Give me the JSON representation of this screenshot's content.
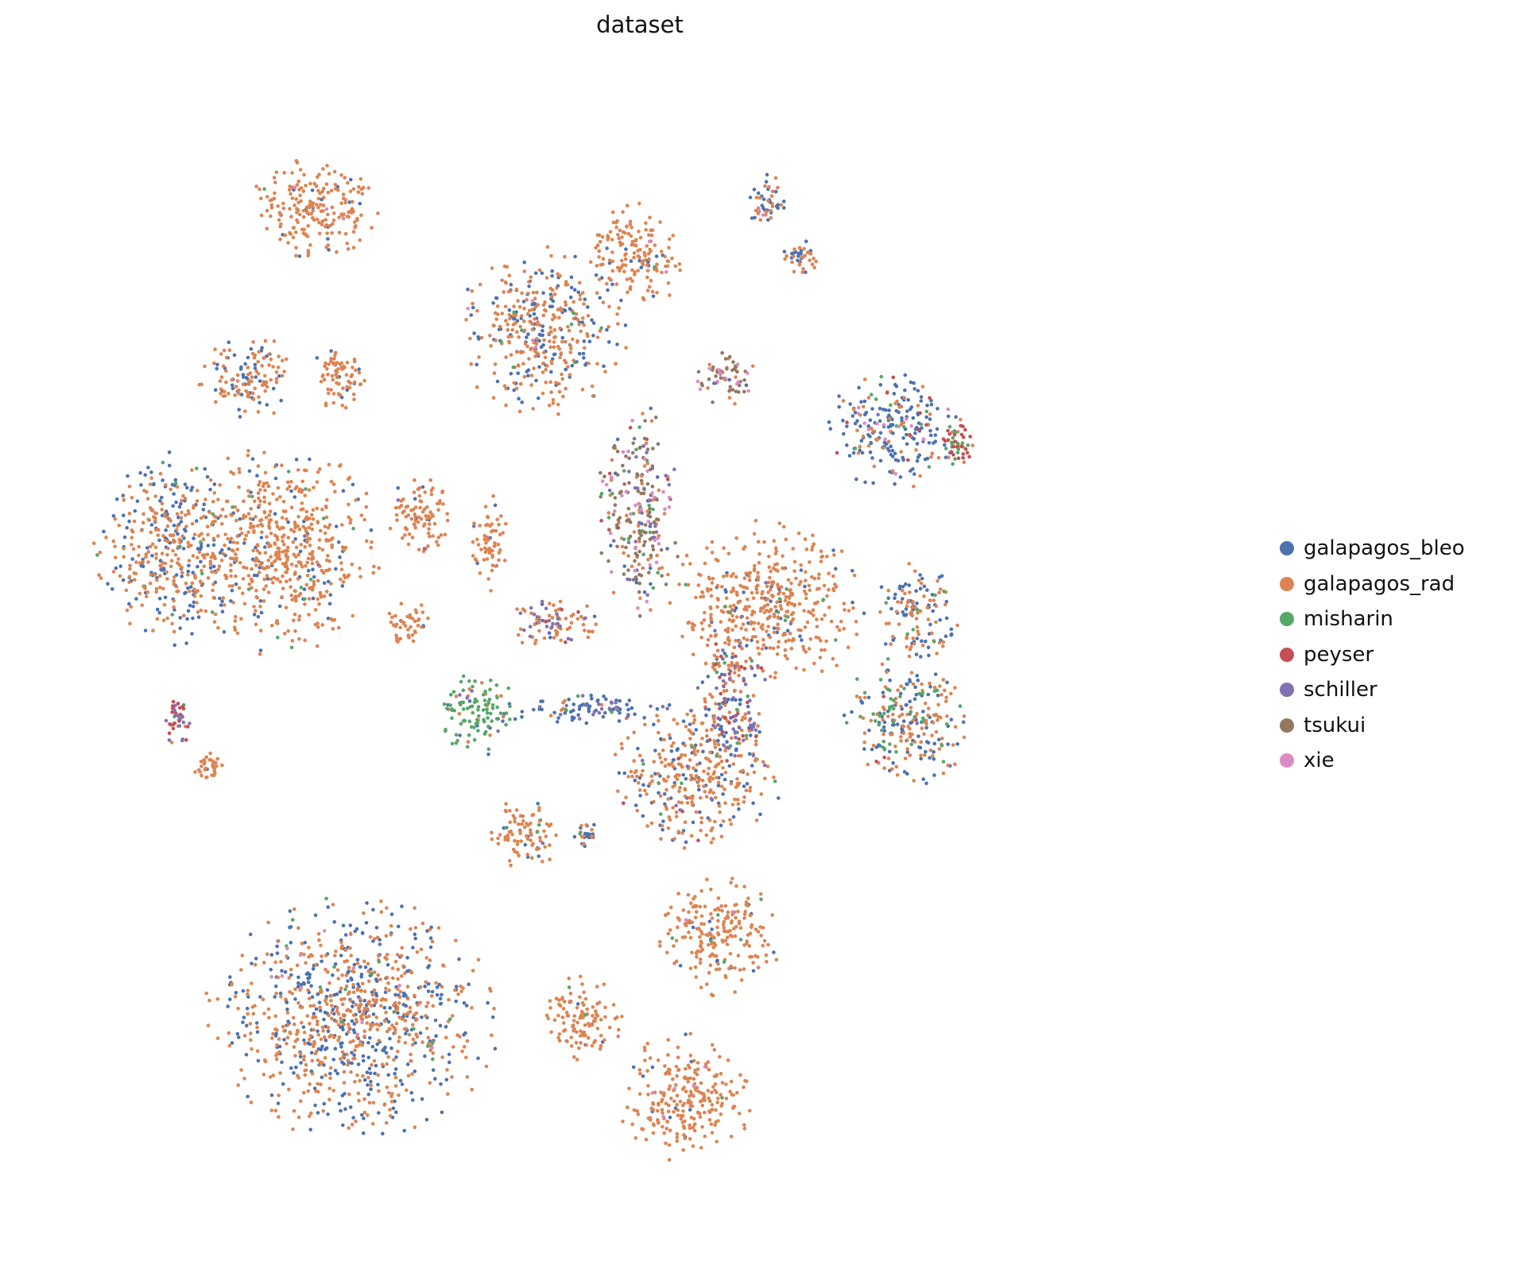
{
  "chart_data": {
    "type": "scatter",
    "title": "dataset",
    "xlabel": "",
    "ylabel": "",
    "axes_visible": false,
    "grid": false,
    "legend_placement": "right",
    "point_marker": "small-dot",
    "xlim": [
      0,
      100
    ],
    "ylim": [
      0,
      100
    ],
    "series": [
      {
        "name": "galapagos_bleo",
        "color": "#4c72b0"
      },
      {
        "name": "galapagos_rad",
        "color": "#dd8452"
      },
      {
        "name": "misharin",
        "color": "#55a868"
      },
      {
        "name": "peyser",
        "color": "#c44e52"
      },
      {
        "name": "schiller",
        "color": "#8172b3"
      },
      {
        "name": "tsukui",
        "color": "#937860"
      },
      {
        "name": "xie",
        "color": "#da8bc3"
      }
    ],
    "clusters": [
      {
        "cx": 22,
        "cy": 89,
        "rx": 5.5,
        "ry": 4.5,
        "mix": [
          0.08,
          0.9,
          0.01,
          0,
          0,
          0,
          0.01
        ]
      },
      {
        "cx": 16,
        "cy": 74,
        "rx": 4,
        "ry": 3.5,
        "mix": [
          0.3,
          0.7,
          0,
          0,
          0,
          0,
          0
        ]
      },
      {
        "cx": 24,
        "cy": 74,
        "rx": 2.5,
        "ry": 3,
        "mix": [
          0.1,
          0.9,
          0,
          0,
          0,
          0,
          0
        ]
      },
      {
        "cx": 9,
        "cy": 59,
        "rx": 6,
        "ry": 8,
        "mix": [
          0.45,
          0.53,
          0.02,
          0,
          0,
          0,
          0
        ]
      },
      {
        "cx": 19,
        "cy": 59,
        "rx": 8,
        "ry": 9,
        "mix": [
          0.15,
          0.83,
          0.02,
          0,
          0,
          0,
          0
        ]
      },
      {
        "cx": 10,
        "cy": 44,
        "rx": 1.5,
        "ry": 2,
        "mix": [
          0.05,
          0.15,
          0.05,
          0.4,
          0.35,
          0,
          0
        ]
      },
      {
        "cx": 12.5,
        "cy": 40,
        "rx": 1.3,
        "ry": 1.3,
        "mix": [
          0.05,
          0.95,
          0,
          0,
          0,
          0,
          0
        ]
      },
      {
        "cx": 25,
        "cy": 18,
        "rx": 12,
        "ry": 10,
        "mix": [
          0.42,
          0.56,
          0.01,
          0,
          0,
          0,
          0.01
        ]
      },
      {
        "cx": 41.5,
        "cy": 78,
        "rx": 7,
        "ry": 7,
        "mix": [
          0.4,
          0.58,
          0.01,
          0,
          0,
          0,
          0.01
        ]
      },
      {
        "cx": 49.5,
        "cy": 84.5,
        "rx": 4,
        "ry": 4.5,
        "mix": [
          0.08,
          0.9,
          0.01,
          0,
          0,
          0,
          0.01
        ]
      },
      {
        "cx": 50,
        "cy": 62,
        "rx": 3.5,
        "ry": 9,
        "mix": [
          0.1,
          0.2,
          0.05,
          0.03,
          0.1,
          0.4,
          0.12
        ]
      },
      {
        "cx": 57.5,
        "cy": 74,
        "rx": 2.5,
        "ry": 2.3,
        "mix": [
          0.05,
          0.2,
          0,
          0,
          0,
          0.55,
          0.2
        ]
      },
      {
        "cx": 72,
        "cy": 69.5,
        "rx": 5.5,
        "ry": 5,
        "mix": [
          0.62,
          0.2,
          0.1,
          0.03,
          0.02,
          0,
          0.03
        ]
      },
      {
        "cx": 77.5,
        "cy": 68.5,
        "rx": 1.8,
        "ry": 2,
        "mix": [
          0.1,
          0.1,
          0.2,
          0.55,
          0,
          0,
          0.05
        ]
      },
      {
        "cx": 61,
        "cy": 89.5,
        "rx": 1.5,
        "ry": 2.5,
        "mix": [
          0.5,
          0.45,
          0,
          0,
          0,
          0,
          0.05
        ]
      },
      {
        "cx": 64,
        "cy": 84.5,
        "rx": 1.7,
        "ry": 1.5,
        "mix": [
          0.6,
          0.4,
          0,
          0,
          0,
          0,
          0
        ]
      },
      {
        "cx": 61,
        "cy": 54,
        "rx": 8,
        "ry": 7,
        "mix": [
          0.08,
          0.88,
          0.03,
          0,
          0.01,
          0,
          0
        ]
      },
      {
        "cx": 55,
        "cy": 39,
        "rx": 7,
        "ry": 6,
        "mix": [
          0.25,
          0.7,
          0.02,
          0.01,
          0.02,
          0,
          0
        ]
      },
      {
        "cx": 58,
        "cy": 46,
        "rx": 3,
        "ry": 7,
        "mix": [
          0.22,
          0.3,
          0.05,
          0.1,
          0.33,
          0,
          0
        ]
      },
      {
        "cx": 73.5,
        "cy": 44,
        "rx": 5.5,
        "ry": 5.5,
        "mix": [
          0.38,
          0.45,
          0.15,
          0.01,
          0.01,
          0,
          0
        ]
      },
      {
        "cx": 74,
        "cy": 53.5,
        "rx": 3.5,
        "ry": 4,
        "mix": [
          0.5,
          0.45,
          0.05,
          0,
          0,
          0,
          0
        ]
      },
      {
        "cx": 57,
        "cy": 25,
        "rx": 5,
        "ry": 5,
        "mix": [
          0.06,
          0.9,
          0.02,
          0,
          0,
          0,
          0.02
        ]
      },
      {
        "cx": 54,
        "cy": 11,
        "rx": 5.5,
        "ry": 5.5,
        "mix": [
          0.03,
          0.95,
          0.01,
          0,
          0,
          0,
          0.01
        ]
      },
      {
        "cx": 45,
        "cy": 18,
        "rx": 3.5,
        "ry": 3.5,
        "mix": [
          0.05,
          0.93,
          0.01,
          0,
          0,
          0,
          0.01
        ]
      },
      {
        "cx": 36,
        "cy": 44.5,
        "rx": 3.5,
        "ry": 3.5,
        "mix": [
          0.1,
          0.15,
          0.72,
          0,
          0.03,
          0,
          0
        ]
      },
      {
        "cx": 40,
        "cy": 34,
        "rx": 3,
        "ry": 3,
        "mix": [
          0.1,
          0.85,
          0.03,
          0,
          0.02,
          0,
          0
        ]
      },
      {
        "cx": 31,
        "cy": 62,
        "rx": 2.8,
        "ry": 3.5,
        "mix": [
          0.05,
          0.93,
          0,
          0,
          0.02,
          0,
          0
        ]
      },
      {
        "cx": 37,
        "cy": 59.5,
        "rx": 1.5,
        "ry": 4,
        "mix": [
          0.05,
          0.93,
          0,
          0,
          0.02,
          0,
          0
        ]
      },
      {
        "cx": 42.5,
        "cy": 52.5,
        "rx": 4,
        "ry": 2.2,
        "mix": [
          0.1,
          0.6,
          0,
          0.05,
          0.25,
          0,
          0
        ]
      },
      {
        "cx": 30,
        "cy": 52.5,
        "rx": 1.8,
        "ry": 1.8,
        "mix": [
          0.05,
          0.95,
          0,
          0,
          0,
          0,
          0
        ]
      },
      {
        "cx": 46,
        "cy": 45,
        "rx": 8,
        "ry": 1.2,
        "mix": [
          0.55,
          0.15,
          0.05,
          0,
          0.25,
          0,
          0
        ]
      },
      {
        "cx": 45.5,
        "cy": 34,
        "rx": 1.2,
        "ry": 1,
        "mix": [
          0.55,
          0.4,
          0.05,
          0,
          0,
          0,
          0
        ]
      }
    ]
  }
}
